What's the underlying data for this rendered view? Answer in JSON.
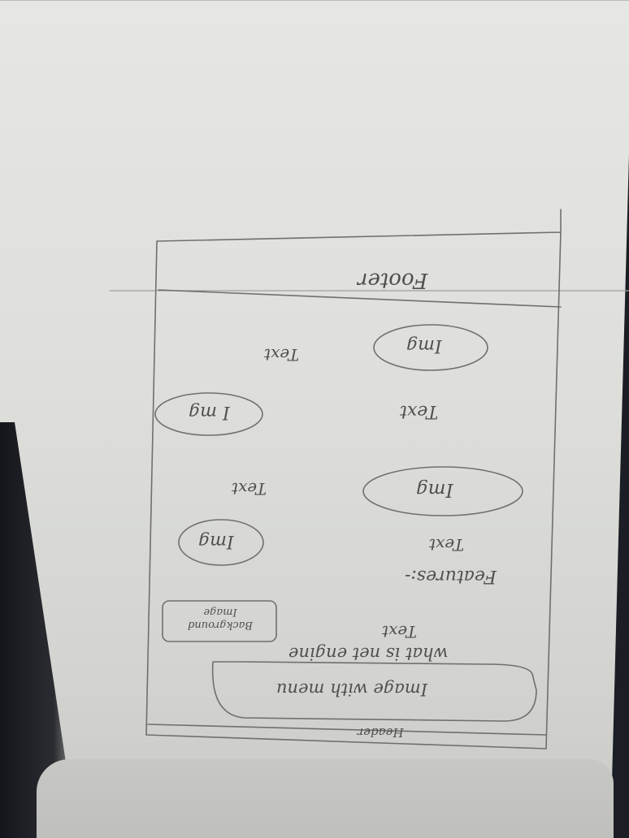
{
  "sketch": {
    "header_label": "Header",
    "hero_image_label": "Image with menu",
    "hero_question": "what is net engine",
    "hero_text": "Text",
    "hero_background_label": "Background Image",
    "features_label": "Features:-",
    "features": [
      {
        "image": "Img",
        "text": "Text"
      },
      {
        "image": "Img",
        "text": "Text"
      },
      {
        "image": "I mg",
        "text": "Text"
      },
      {
        "image": "Img",
        "text": "Text"
      }
    ],
    "footer_label": "Footer"
  }
}
